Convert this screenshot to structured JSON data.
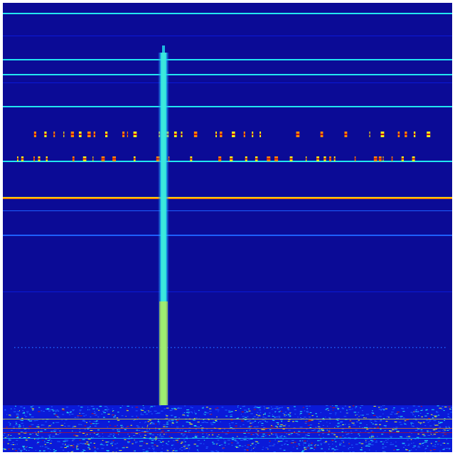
{
  "image": {
    "kind": "spectrogram",
    "colormap": "jet",
    "colors": {
      "background": "#0b0b96",
      "low": "#0a1ad8",
      "mid_blue": "#1e60ff",
      "cyan": "#22e6f0",
      "yellow": "#f2f018",
      "orange": "#ff8a00",
      "red": "#c81010"
    }
  }
}
